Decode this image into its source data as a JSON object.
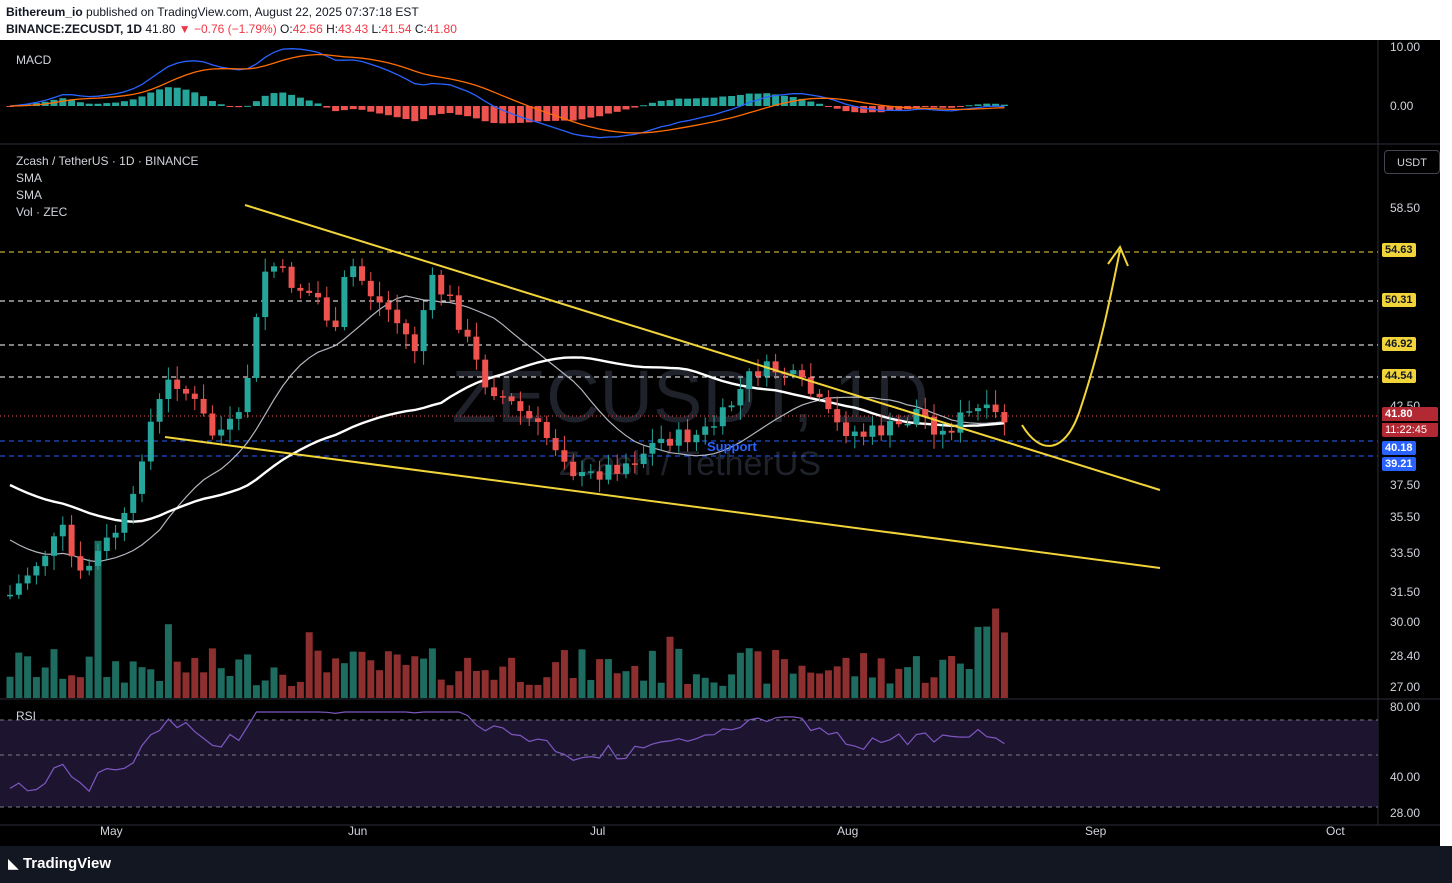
{
  "header": {
    "author": "Bithereum_io",
    "published": "published on TradingView.com, August 22, 2025 07:37:18 EST",
    "symbol": "BINANCE:ZECUSDT, 1D",
    "last": "41.80",
    "change": "−0.76 (−1.79%)",
    "ohlc": {
      "o": "42.56",
      "h": "43.43",
      "l": "41.54",
      "c": "41.80"
    }
  },
  "legend": {
    "macd": "MACD",
    "title": "Zcash / TetherUS · 1D · BINANCE",
    "sma1": "SMA",
    "sma2": "SMA",
    "vol": "Vol · ZEC",
    "rsi": "RSI"
  },
  "currency_button": "USDT",
  "watermark": {
    "symbol": "ZECUSDT, 1D",
    "name": "Zcash / TetherUS"
  },
  "support_label": "Support",
  "tags": {
    "t1": "54.63",
    "t2": "50.31",
    "t3": "46.92",
    "t4": "44.54",
    "price": "41.80",
    "countdown": "11:22:45",
    "l1": "40.18",
    "l2": "39.21"
  },
  "macd_axis": [
    "10.00",
    "0.00"
  ],
  "price_axis": [
    "58.50",
    "42.50",
    "37.50",
    "35.50",
    "33.50",
    "31.50",
    "30.00",
    "28.40",
    "27.00"
  ],
  "rsi_axis": [
    "80.00",
    "40.00",
    "28.00"
  ],
  "time_axis": [
    "May",
    "Jun",
    "Jul",
    "Aug",
    "Sep",
    "Oct"
  ],
  "footer": {
    "brand": "TradingView"
  },
  "colors": {
    "up": "#26a69a",
    "down": "#ef5350",
    "vol_up": "#1e6b5f",
    "vol_down": "#8e2f2f",
    "trend": "#f0d43a",
    "rsi": "#7e57c2",
    "sma_long": "#ffffff",
    "sma_short": "#b2b5be",
    "macd": "#2962ff",
    "signal": "#ff6d00"
  },
  "chart_data": {
    "type": "candlestick",
    "symbol": "BINANCE:ZECUSDT",
    "interval": "1D",
    "last_candle": {
      "open": 42.56,
      "high": 43.43,
      "low": 41.54,
      "close": 41.8,
      "change": -0.76,
      "change_pct": -1.79
    },
    "horizontal_levels": [
      54.63,
      50.31,
      46.92,
      44.54,
      40.18,
      39.21
    ],
    "annotation": "Support",
    "indicators": [
      "MACD",
      "SMA",
      "SMA",
      "Vol · ZEC",
      "RSI"
    ]
  }
}
